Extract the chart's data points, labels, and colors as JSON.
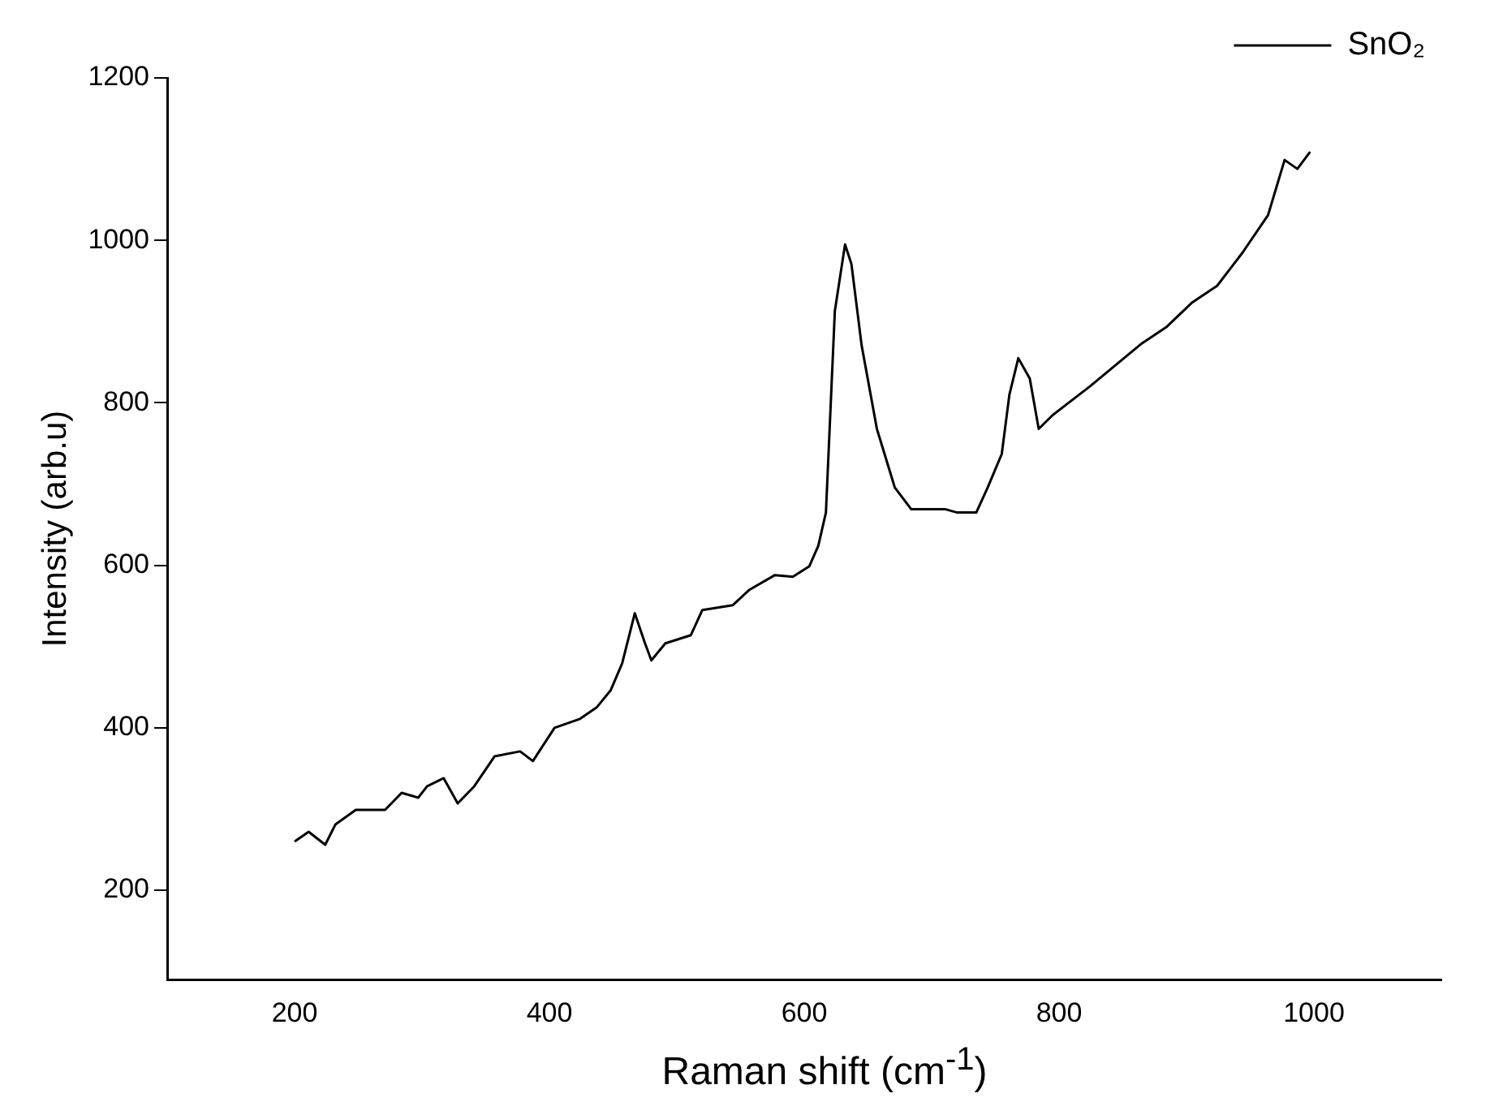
{
  "chart_data": {
    "type": "line",
    "xlabel": "Raman shift (cm$^{-1}$)",
    "ylabel": "Intensity (arb.u)",
    "legend": "top right",
    "grid": false,
    "marker": "none",
    "line_style": "solid",
    "xlim": [
      100,
      1100
    ],
    "xticks": [
      200,
      400,
      600,
      800,
      1000
    ],
    "ylim": [
      90,
      1200
    ],
    "yticks": [
      200,
      400,
      600,
      800,
      1000,
      1200
    ],
    "series": [
      {
        "name": "SnO₂",
        "color": "#000000",
        "x": [
          200,
          211,
          224,
          232,
          248,
          271,
          284,
          297,
          304,
          317,
          328,
          341,
          357,
          377,
          387,
          404,
          424,
          437,
          448,
          457,
          467,
          475,
          480,
          491,
          511,
          520,
          544,
          557,
          577,
          591,
          604,
          611,
          617,
          624,
          632,
          637,
          645,
          657,
          671,
          684,
          711,
          720,
          735,
          744,
          755,
          761,
          768,
          777,
          784,
          795,
          824,
          864,
          884,
          904,
          924,
          944,
          964,
          977,
          987,
          997
        ],
        "values": [
          260,
          272,
          256,
          281,
          299,
          299,
          320,
          314,
          328,
          338,
          307,
          328,
          365,
          371,
          359,
          400,
          411,
          425,
          446,
          479,
          541,
          504,
          483,
          504,
          514,
          545,
          551,
          570,
          588,
          586,
          599,
          624,
          665,
          913,
          995,
          971,
          871,
          768,
          696,
          669,
          669,
          665,
          665,
          696,
          737,
          810,
          855,
          830,
          768,
          785,
          820,
          872,
          893,
          923,
          944,
          985,
          1031,
          1099,
          1088,
          1109
        ]
      }
    ]
  }
}
